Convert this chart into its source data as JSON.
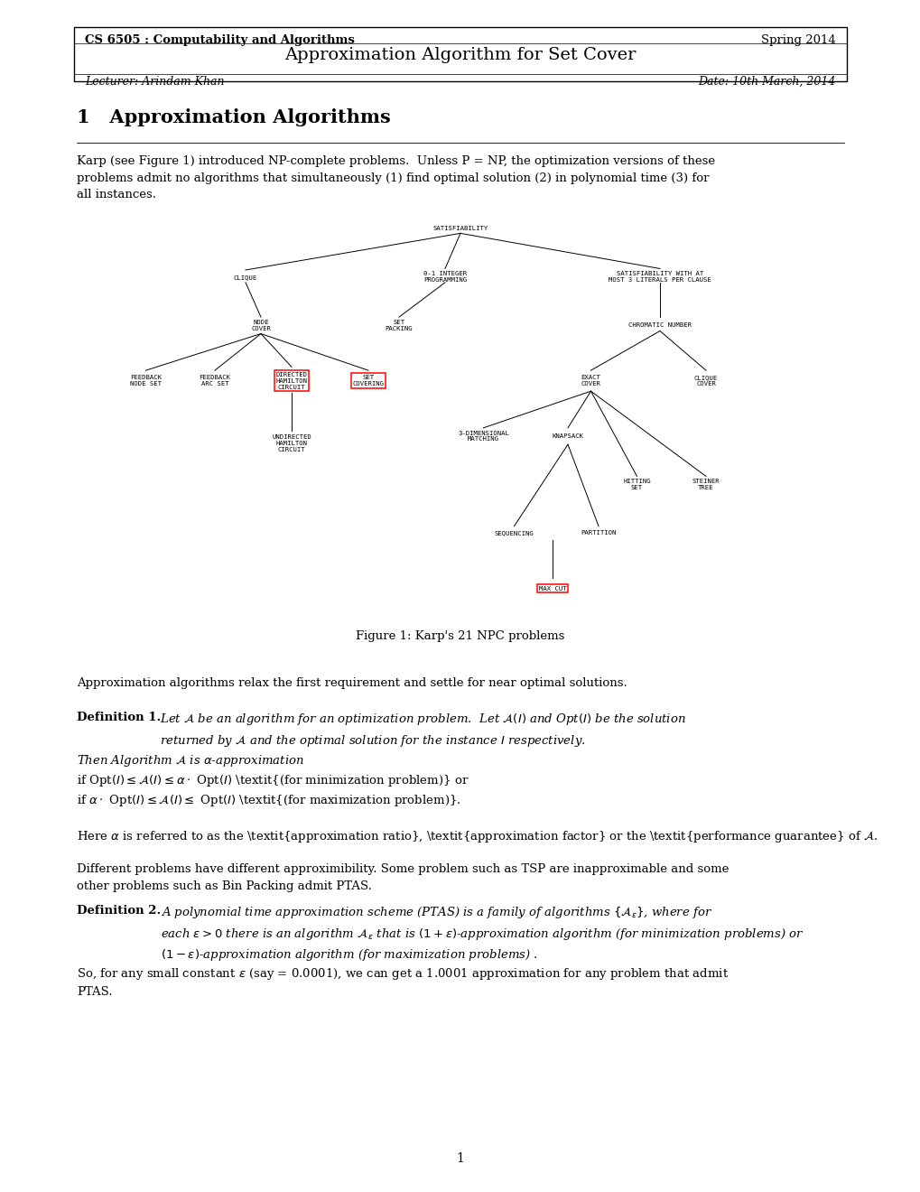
{
  "bg_color": "#ffffff",
  "page_width": 10.2,
  "page_height": 13.2,
  "header_left": "CS 6505 : Computability and Algorithms",
  "header_right": "Spring 2014",
  "title": "Approximation Algorithm for Set Cover",
  "lecturer": "Lecturer: Arindam Khan",
  "date": "Date: 10th March, 2014",
  "figure_caption": "Figure 1: Karp's 21 NPC problems",
  "page_number": "1"
}
